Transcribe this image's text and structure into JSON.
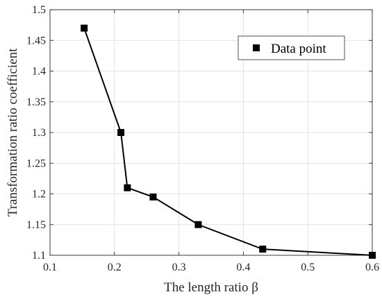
{
  "chart_data": {
    "type": "line",
    "xlabel": "The length ratio β",
    "ylabel": "Transformation ratio coefficient",
    "xlim": [
      0.1,
      0.6
    ],
    "ylim": [
      1.1,
      1.5
    ],
    "x_ticks": [
      0.1,
      0.2,
      0.3,
      0.4,
      0.5,
      0.6
    ],
    "x_tick_labels": [
      "0.1",
      "0.2",
      "0.3",
      "0.4",
      "0.5",
      "0.6"
    ],
    "y_ticks": [
      1.1,
      1.15,
      1.2,
      1.25,
      1.3,
      1.35,
      1.4,
      1.45,
      1.5
    ],
    "y_tick_labels": [
      "1.1",
      "1.15",
      "1.2",
      "1.25",
      "1.3",
      "1.35",
      "1.4",
      "1.45",
      "1.5"
    ],
    "grid": true,
    "legend_position": "top-right",
    "series": [
      {
        "name": "Data point",
        "marker": "square",
        "color": "#000000",
        "x": [
          0.153,
          0.21,
          0.22,
          0.26,
          0.33,
          0.43,
          0.6
        ],
        "y": [
          1.47,
          1.3,
          1.21,
          1.195,
          1.15,
          1.11,
          1.1
        ]
      }
    ]
  }
}
